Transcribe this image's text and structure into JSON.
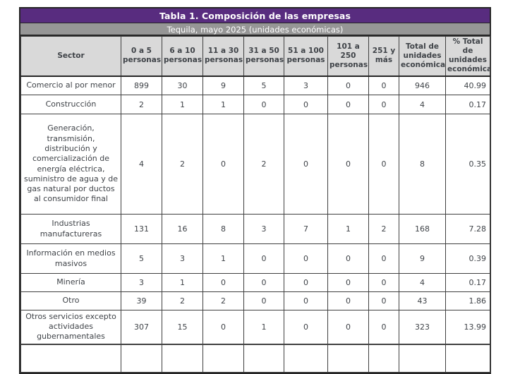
{
  "title": "Tabla 1. Composición de las empresas",
  "subtitle": "Tequila, mayo 2025 (unidades económicas)",
  "colors": {
    "title_bg": "#582C7F",
    "subtitle_bg": "#969696",
    "header_bg": "#D9D9D9",
    "border": "#404040",
    "text": "#3F4348"
  },
  "table": {
    "columns": [
      "Sector",
      "0 a 5 personas",
      "6 a 10 personas",
      "11 a 30 personas",
      "31 a 50 personas",
      "51 a 100 personas",
      "101 a 250 personas",
      "251 y más",
      "Total de unidades económicas",
      "% Total de unidades económicas"
    ],
    "rows": [
      {
        "sector": "Comercio al por menor",
        "values": [
          "899",
          "30",
          "9",
          "5",
          "3",
          "0",
          "0",
          "946",
          "40.99"
        ]
      },
      {
        "sector": "Construcción",
        "values": [
          "2",
          "1",
          "1",
          "0",
          "0",
          "0",
          "0",
          "4",
          "0.17"
        ]
      },
      {
        "sector": "Generación, transmisión, distribución y comercialización de energía eléctrica, suministro de agua y de gas natural por ductos al consumidor final",
        "values": [
          "4",
          "2",
          "0",
          "2",
          "0",
          "0",
          "0",
          "8",
          "0.35"
        ]
      },
      {
        "sector": "Industrias manufactureras",
        "values": [
          "131",
          "16",
          "8",
          "3",
          "7",
          "1",
          "2",
          "168",
          "7.28"
        ]
      },
      {
        "sector": "Información en medios masivos",
        "values": [
          "5",
          "3",
          "1",
          "0",
          "0",
          "0",
          "0",
          "9",
          "0.39"
        ]
      },
      {
        "sector": "Minería",
        "values": [
          "3",
          "1",
          "0",
          "0",
          "0",
          "0",
          "0",
          "4",
          "0.17"
        ]
      },
      {
        "sector": "Otro",
        "values": [
          "39",
          "2",
          "2",
          "0",
          "0",
          "0",
          "0",
          "43",
          "1.86"
        ]
      },
      {
        "sector": "Otros servicios excepto actividades gubernamentales",
        "values": [
          "307",
          "15",
          "0",
          "1",
          "0",
          "0",
          "0",
          "323",
          "13.99"
        ]
      }
    ]
  }
}
